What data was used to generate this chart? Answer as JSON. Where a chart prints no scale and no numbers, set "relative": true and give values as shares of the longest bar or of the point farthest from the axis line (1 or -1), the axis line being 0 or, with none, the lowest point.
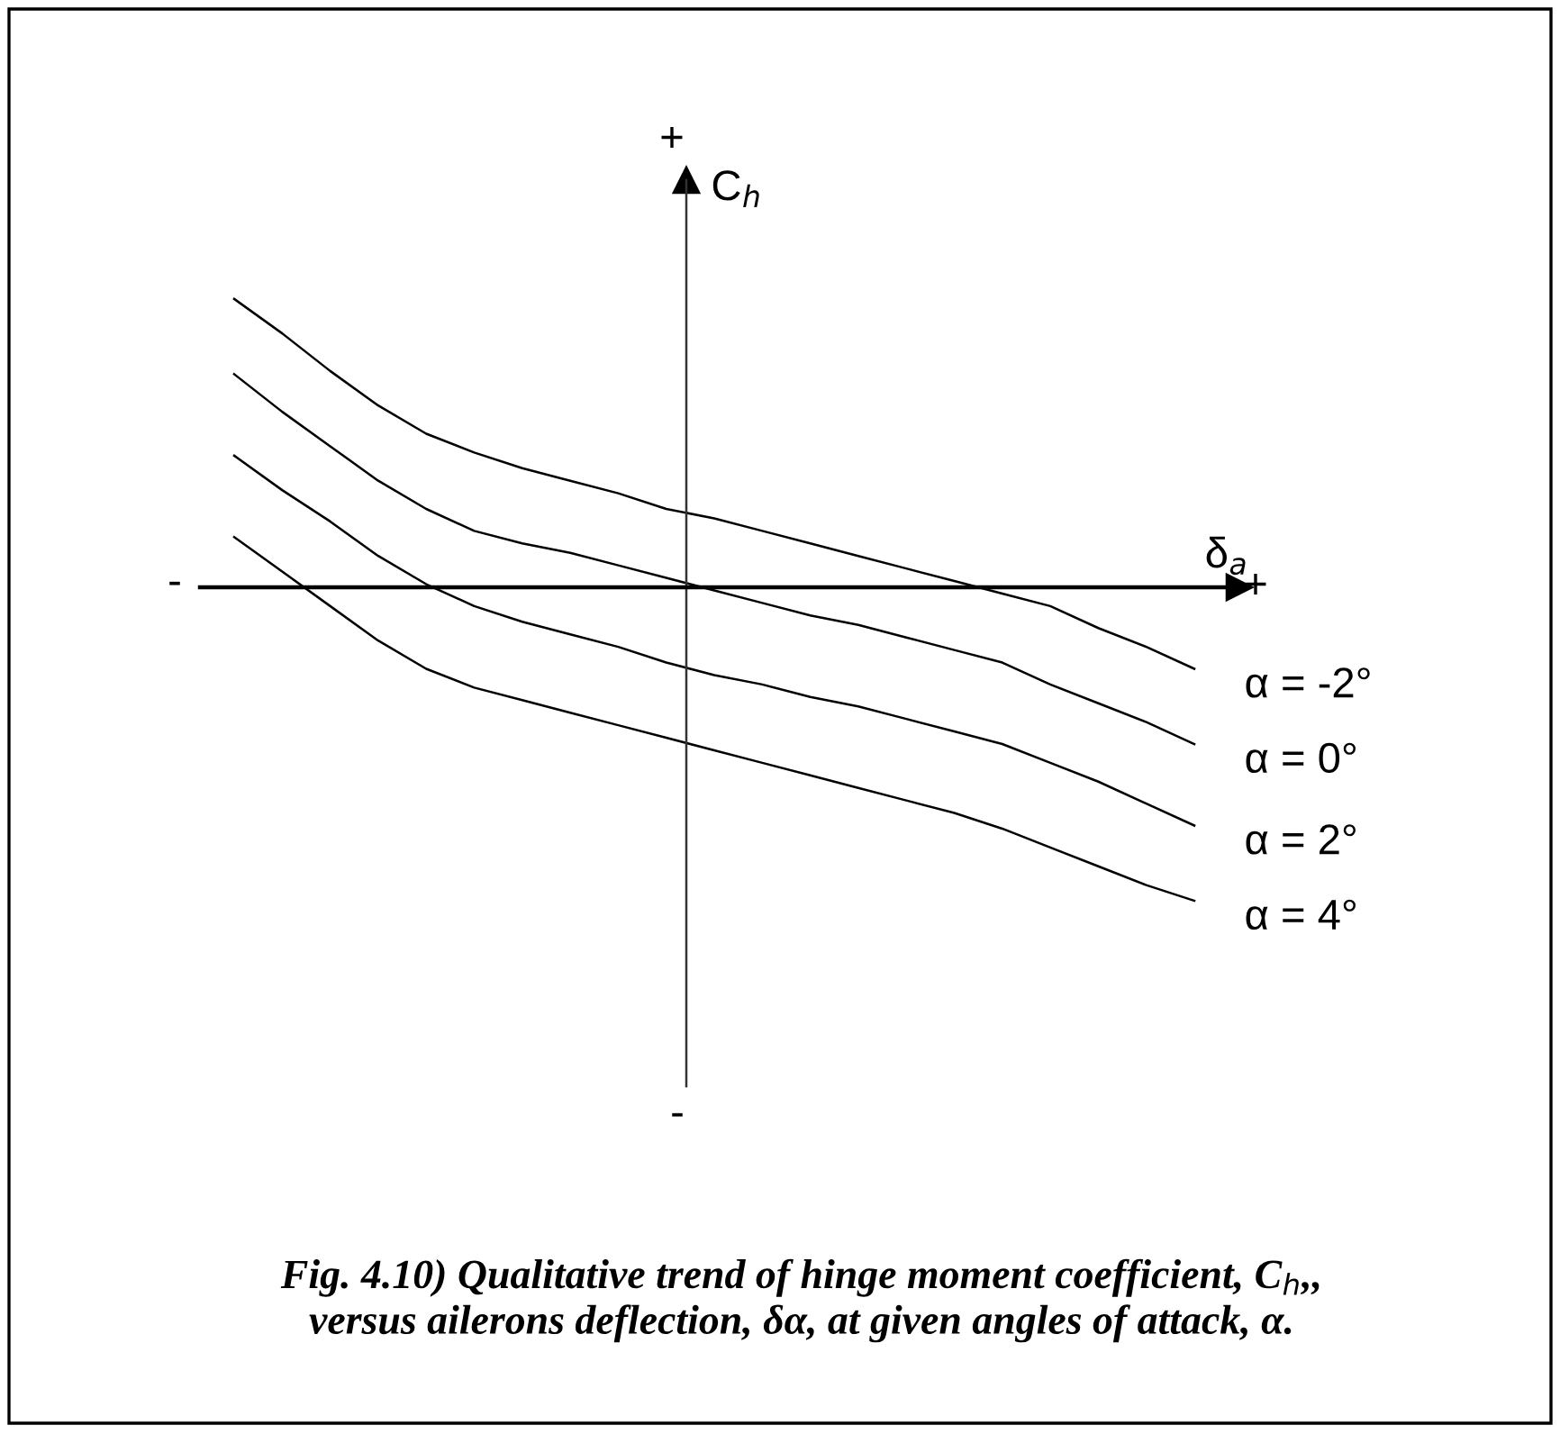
{
  "chart_data": {
    "type": "line",
    "relative": true,
    "xlabel": "δ$_{a}$",
    "ylabel": "C$_{h}$",
    "marker": "none",
    "line_style": "solid",
    "categories": [
      null,
      null,
      null,
      null,
      null,
      null,
      null,
      null,
      null,
      null,
      null,
      null,
      null,
      null,
      null,
      null,
      null,
      null,
      null,
      null,
      null
    ],
    "series": [
      {
        "name": "α = -2°",
        "color": "#000000",
        "values": [
          0.92,
          0.81,
          0.69,
          0.58,
          0.49,
          0.43,
          0.38,
          0.34,
          0.3,
          0.25,
          0.22,
          0.18,
          0.14,
          0.1,
          0.06,
          0.02,
          -0.02,
          -0.06,
          -0.13,
          -0.19,
          -0.26
        ]
      },
      {
        "name": "α = 0°",
        "color": "#000000",
        "values": [
          0.68,
          0.56,
          0.45,
          0.34,
          0.25,
          0.18,
          0.14,
          0.11,
          0.07,
          0.03,
          -0.01,
          -0.05,
          -0.09,
          -0.12,
          -0.16,
          -0.2,
          -0.24,
          -0.31,
          -0.37,
          -0.43,
          -0.5
        ]
      },
      {
        "name": "α = 2°",
        "color": "#000000",
        "values": [
          0.42,
          0.31,
          0.21,
          0.1,
          0.01,
          -0.06,
          -0.11,
          -0.15,
          -0.19,
          -0.24,
          -0.28,
          -0.31,
          -0.35,
          -0.38,
          -0.42,
          -0.46,
          -0.5,
          -0.56,
          -0.62,
          -0.69,
          -0.76
        ]
      },
      {
        "name": "α = 4°",
        "color": "#000000",
        "values": [
          0.16,
          0.05,
          -0.06,
          -0.17,
          -0.26,
          -0.32,
          -0.36,
          -0.4,
          -0.44,
          -0.48,
          -0.52,
          -0.56,
          -0.6,
          -0.64,
          -0.68,
          -0.72,
          -0.77,
          -0.83,
          -0.89,
          -0.95,
          -1.0
        ]
      }
    ],
    "annotations": [
      "+",
      "-",
      "-",
      "+",
      "Fig. 4.10) Qualitative trend of hinge moment coefficient, C$_{h}$,,\nversus ailerons deflection, δα, at given angles of attack, α."
    ]
  }
}
